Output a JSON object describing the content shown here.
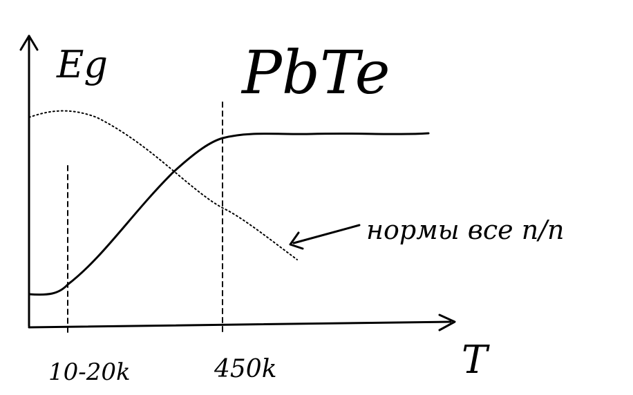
{
  "title": "PbTe",
  "axes": {
    "y_label": "Eg",
    "x_label": "T"
  },
  "markers": {
    "low": "10-20k",
    "high": "450k"
  },
  "annotation": "нормы все п/п",
  "colors": {
    "ink": "#000000",
    "background": "#ffffff"
  }
}
